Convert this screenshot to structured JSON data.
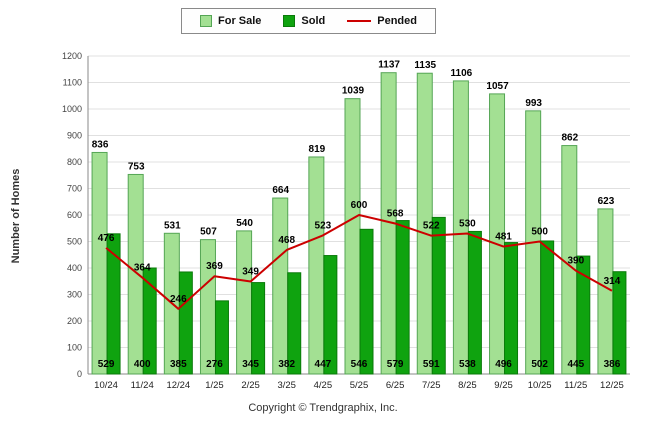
{
  "footer": {
    "copyright": "Copyright © Trendgraphix, Inc."
  },
  "chart_data": {
    "type": "bar+line",
    "title": "",
    "xlabel": "",
    "ylabel": "Number of Homes",
    "ylim": [
      0,
      1200
    ],
    "ytick_step": 100,
    "grid": true,
    "legend_position": "top-center",
    "categories": [
      "10/24",
      "11/24",
      "12/24",
      "1/25",
      "2/25",
      "3/25",
      "4/25",
      "5/25",
      "6/25",
      "7/25",
      "8/25",
      "9/25",
      "10/25",
      "11/25",
      "12/25"
    ],
    "series": [
      {
        "name": "For Sale",
        "type": "bar",
        "color": "#a3e093",
        "border": "#55a555",
        "values": [
          836,
          753,
          531,
          507,
          540,
          664,
          819,
          1039,
          1137,
          1135,
          1106,
          1057,
          993,
          862,
          623
        ]
      },
      {
        "name": "Sold",
        "type": "bar",
        "color": "#0fa30f",
        "border": "#0a7a0a",
        "values": [
          529,
          400,
          385,
          276,
          345,
          382,
          447,
          546,
          579,
          591,
          538,
          496,
          502,
          445,
          386
        ]
      },
      {
        "name": "Pended",
        "type": "line",
        "color": "#cc0000",
        "values": [
          476,
          364,
          246,
          369,
          349,
          468,
          523,
          600,
          568,
          522,
          530,
          481,
          500,
          390,
          314
        ]
      }
    ]
  }
}
